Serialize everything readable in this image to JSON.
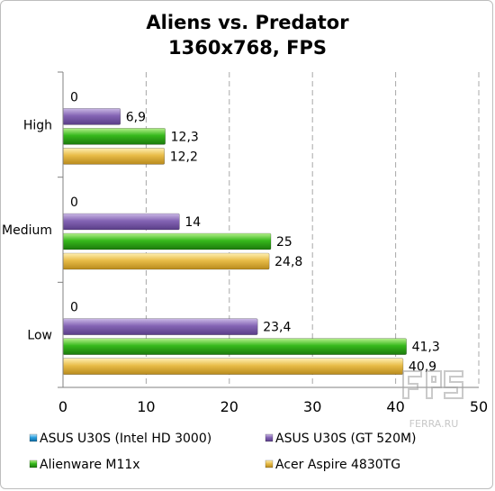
{
  "chart_data": {
    "type": "bar",
    "orientation": "horizontal",
    "title_lines": [
      "Aliens vs. Predator",
      "1360x768, FPS"
    ],
    "categories": [
      "High",
      "Medium",
      "Low"
    ],
    "series": [
      {
        "name": "ASUS U30S (Intel HD 3000)",
        "color": "#2aa0e0",
        "values": [
          0,
          0,
          0
        ],
        "labels": [
          "0",
          "0",
          "0"
        ]
      },
      {
        "name": "ASUS U30S (GT 520M)",
        "color": "#8060b0",
        "values": [
          6.9,
          14,
          23.4
        ],
        "labels": [
          "6,9",
          "14",
          "23,4"
        ]
      },
      {
        "name": "Alienware M11x",
        "color": "#33b21a",
        "values": [
          12.3,
          25,
          41.3
        ],
        "labels": [
          "12,3",
          "25",
          "41,3"
        ]
      },
      {
        "name": "Acer Aspire 4830TG",
        "color": "#e8b840",
        "values": [
          12.2,
          24.8,
          40.9
        ],
        "labels": [
          "12,2",
          "24,8",
          "40,9"
        ]
      }
    ],
    "xlim": [
      0,
      50
    ],
    "xticks": [
      "0",
      "10",
      "20",
      "30",
      "40",
      "50"
    ],
    "grid": "vertical-dashed",
    "legend_position": "bottom"
  },
  "watermark": {
    "text": "FERRA.RU"
  }
}
